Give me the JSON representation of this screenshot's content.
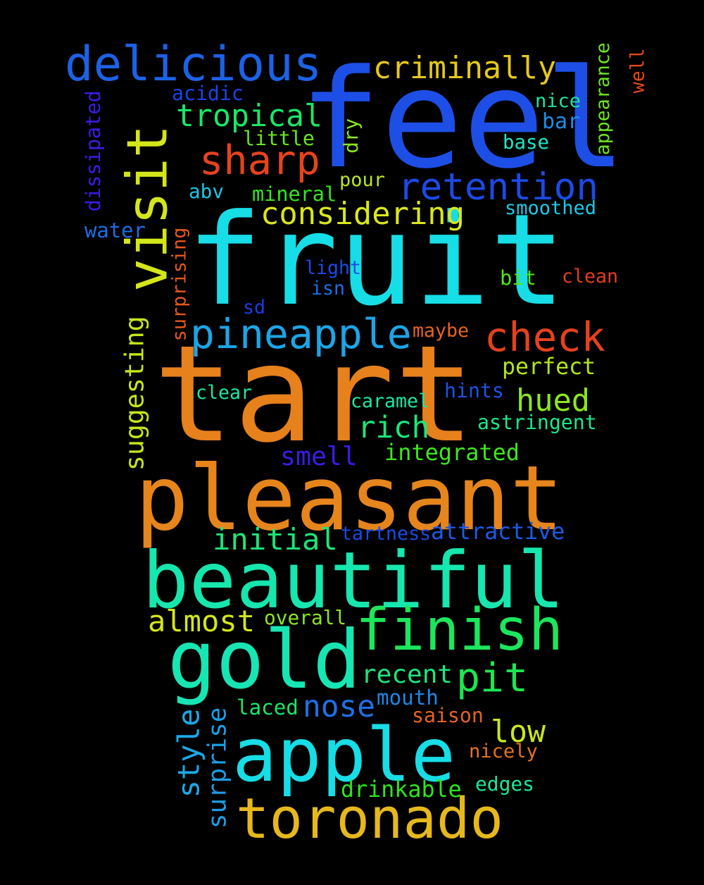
{
  "words": [
    {
      "text": "fruit",
      "color": "#17dde6"
    },
    {
      "text": "feel",
      "color": "#1d4fe6"
    },
    {
      "text": "tart",
      "color": "#e6811c"
    },
    {
      "text": "pleasant",
      "color": "#e6851c"
    },
    {
      "text": "beautiful",
      "color": "#17e6ae"
    },
    {
      "text": "visit",
      "color": "#d4e61a"
    },
    {
      "text": "gold",
      "color": "#17e6b4"
    },
    {
      "text": "apple",
      "color": "#17dde6"
    },
    {
      "text": "toronado",
      "color": "#e6b81c"
    },
    {
      "text": "finish",
      "color": "#1ce65c"
    },
    {
      "text": "delicious",
      "color": "#1c62e6"
    },
    {
      "text": "pineapple",
      "color": "#1ca5e6"
    },
    {
      "text": "check",
      "color": "#e6411c"
    },
    {
      "text": "retention",
      "color": "#1c4ae6"
    },
    {
      "text": "sharp",
      "color": "#e6431c"
    },
    {
      "text": "tropical",
      "color": "#1ce668"
    },
    {
      "text": "criminally",
      "color": "#e6c81c"
    },
    {
      "text": "considering",
      "color": "#dbe61c"
    },
    {
      "text": "pit",
      "color": "#1ce652"
    },
    {
      "text": "initial",
      "color": "#1ce67a"
    },
    {
      "text": "rich",
      "color": "#1ce67a"
    },
    {
      "text": "hued",
      "color": "#8ee61c"
    },
    {
      "text": "almost",
      "color": "#d4e61c"
    },
    {
      "text": "low",
      "color": "#cbe61c"
    },
    {
      "text": "nose",
      "color": "#1c72e6"
    },
    {
      "text": "recent",
      "color": "#1ce67e"
    },
    {
      "text": "smell",
      "color": "#3a1ce6"
    },
    {
      "text": "style",
      "color": "#1ca8e6"
    },
    {
      "text": "suggesting",
      "color": "#c5e61c"
    },
    {
      "text": "surprise",
      "color": "#1c9ee6"
    },
    {
      "text": "integrated",
      "color": "#3ee61c"
    },
    {
      "text": "attractive",
      "color": "#1c5ae6"
    },
    {
      "text": "tartness",
      "color": "#1c4ae6"
    },
    {
      "text": "drinkable",
      "color": "#2ce61c"
    },
    {
      "text": "astringent",
      "color": "#1ce68a"
    },
    {
      "text": "perfect",
      "color": "#b2e61c"
    },
    {
      "text": "dissipated",
      "color": "#3a1ce6"
    },
    {
      "text": "surprising",
      "color": "#e6571c"
    },
    {
      "text": "appearance",
      "color": "#6ee61c"
    },
    {
      "text": "well",
      "color": "#e6471c"
    },
    {
      "text": "acidic",
      "color": "#1c44e6"
    },
    {
      "text": "little",
      "color": "#6ae61c"
    },
    {
      "text": "dry",
      "color": "#8ae61c"
    },
    {
      "text": "nice",
      "color": "#1ce6a0"
    },
    {
      "text": "bar",
      "color": "#1c8ee6"
    },
    {
      "text": "base",
      "color": "#1ce6c6"
    },
    {
      "text": "abv",
      "color": "#1cc6e6"
    },
    {
      "text": "mineral",
      "color": "#36e61c"
    },
    {
      "text": "pour",
      "color": "#bde61c"
    },
    {
      "text": "smoothed",
      "color": "#1cc8e6"
    },
    {
      "text": "water",
      "color": "#1c6ee6"
    },
    {
      "text": "light",
      "color": "#1c4ae6"
    },
    {
      "text": "isn",
      "color": "#1c6ee6"
    },
    {
      "text": "sd",
      "color": "#1c3ce6"
    },
    {
      "text": "bit",
      "color": "#52e61c"
    },
    {
      "text": "clean",
      "color": "#e63c1c"
    },
    {
      "text": "maybe",
      "color": "#e6641c"
    },
    {
      "text": "clear",
      "color": "#1ce6a6"
    },
    {
      "text": "caramel",
      "color": "#1ce6a2"
    },
    {
      "text": "hints",
      "color": "#1c52e6"
    },
    {
      "text": "overall",
      "color": "#8ee61c"
    },
    {
      "text": "laced",
      "color": "#1ce668"
    },
    {
      "text": "mouth",
      "color": "#1c88e6"
    },
    {
      "text": "saison",
      "color": "#e6641c"
    },
    {
      "text": "nicely",
      "color": "#e6741c"
    },
    {
      "text": "edges",
      "color": "#1ce698"
    }
  ]
}
